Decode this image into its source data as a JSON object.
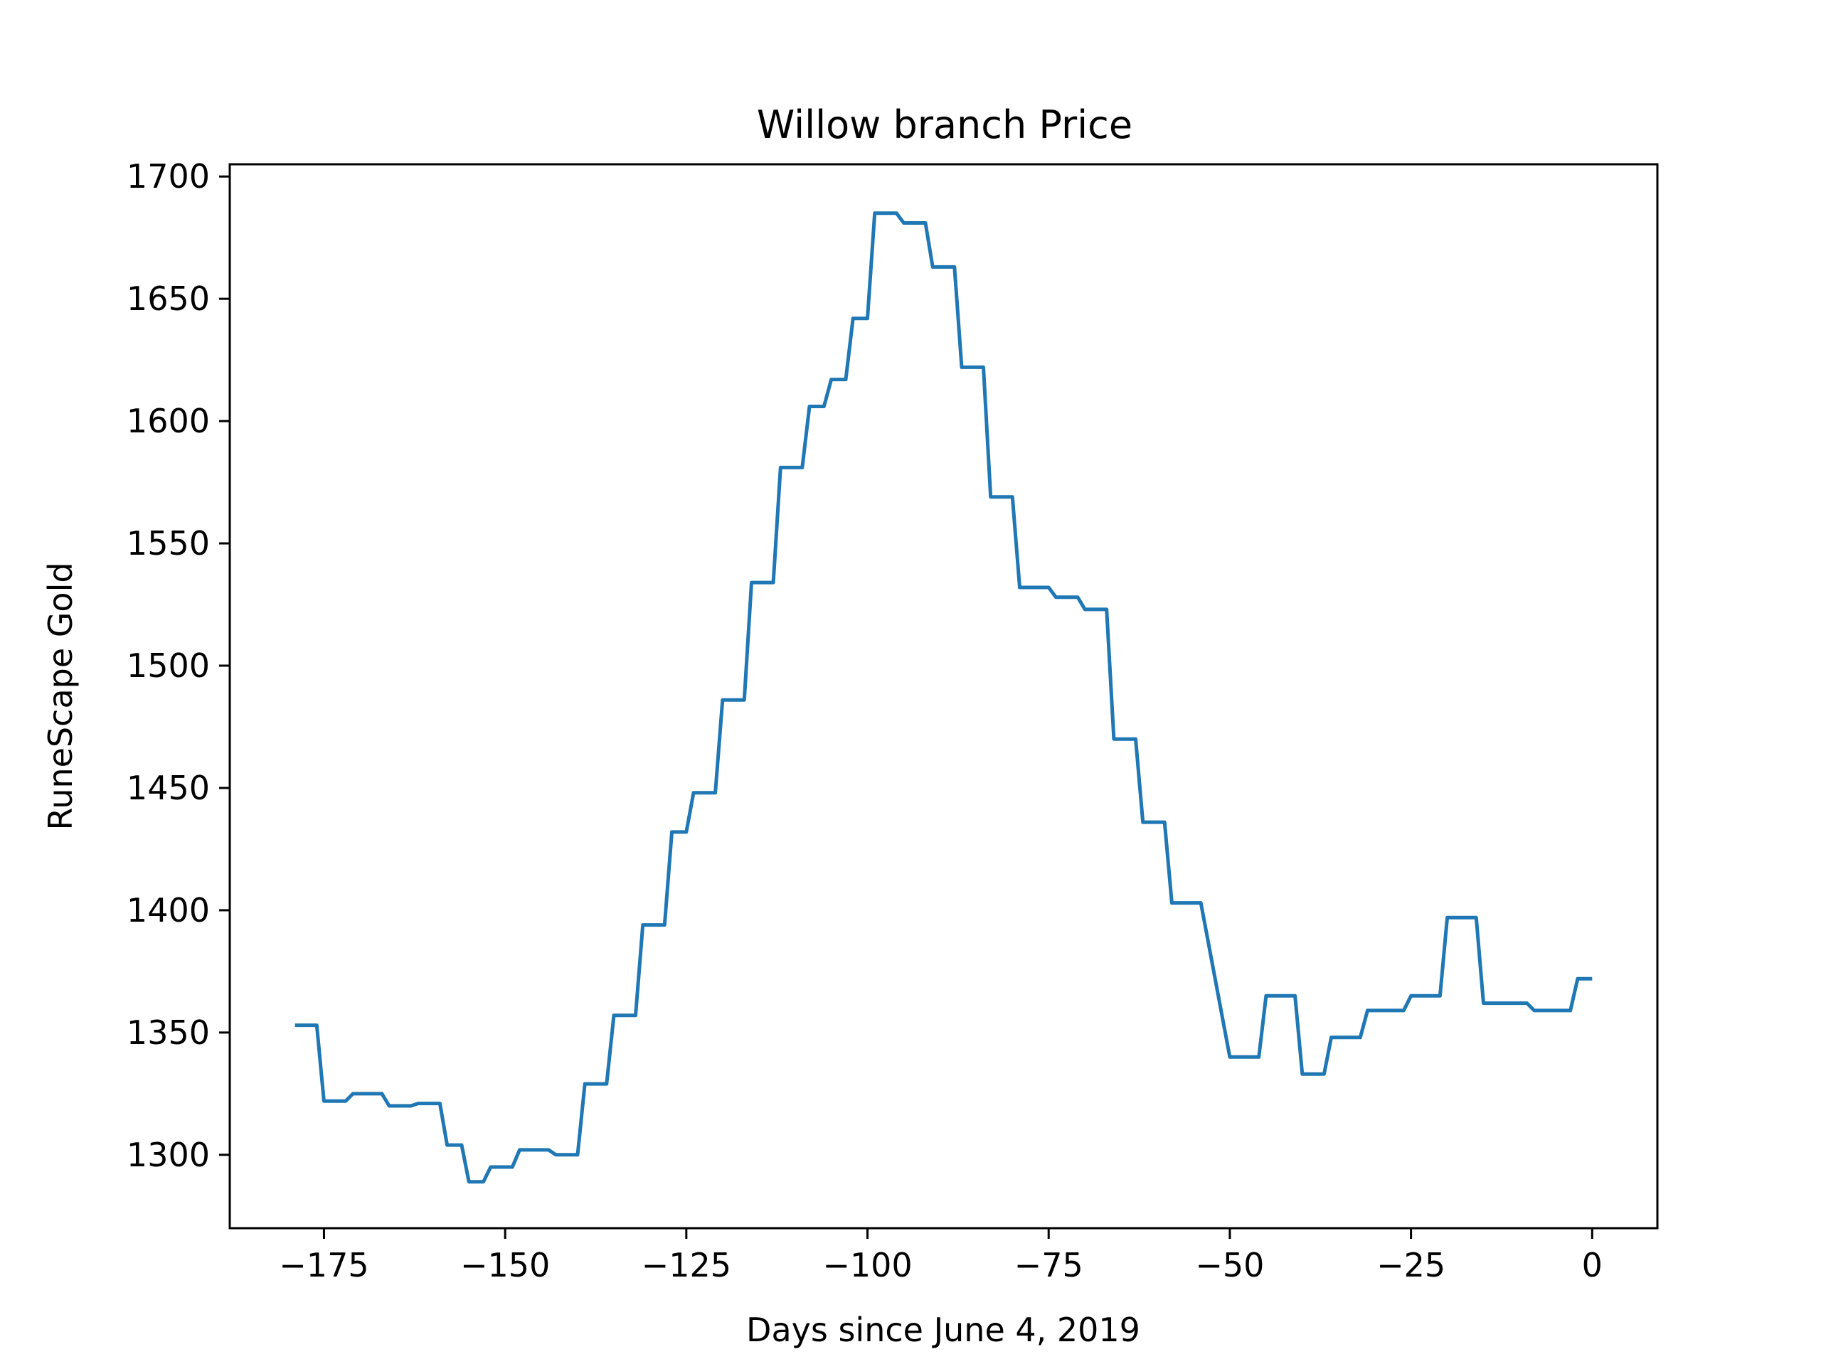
{
  "chart_data": {
    "type": "line",
    "title": "Willow branch Price",
    "xlabel": "Days since June 4, 2019",
    "ylabel": "RuneScape Gold",
    "xlim": [
      -188,
      9
    ],
    "ylim": [
      1270,
      1705
    ],
    "xticks": [
      -175,
      -150,
      -125,
      -100,
      -75,
      -50,
      -25,
      0
    ],
    "xtick_labels": [
      "−175",
      "−150",
      "−125",
      "−100",
      "−75",
      "−50",
      "−25",
      "0"
    ],
    "yticks": [
      1300,
      1350,
      1400,
      1450,
      1500,
      1550,
      1600,
      1650,
      1700
    ],
    "ytick_labels": [
      "1300",
      "1350",
      "1400",
      "1450",
      "1500",
      "1550",
      "1600",
      "1650",
      "1700"
    ],
    "grid": false,
    "series": [
      {
        "color": "#1f77b4",
        "x": [
          -179,
          -176,
          -175,
          -172,
          -171,
          -167,
          -166,
          -163,
          -162,
          -159,
          -158,
          -156,
          -155,
          -153,
          -152,
          -149,
          -148,
          -144,
          -143,
          -140,
          -139,
          -136,
          -135,
          -132,
          -131,
          -128,
          -127,
          -125,
          -124,
          -121,
          -120,
          -117,
          -116,
          -113,
          -112,
          -109,
          -108,
          -106,
          -105,
          -103,
          -102,
          -100,
          -99,
          -96,
          -95,
          -92,
          -91,
          -88,
          -87,
          -84,
          -83,
          -80,
          -79,
          -75,
          -74,
          -71,
          -70,
          -67,
          -66,
          -63,
          -62,
          -59,
          -58,
          -55,
          -54,
          -50,
          -49,
          -46,
          -45,
          -41,
          -40,
          -37,
          -36,
          -32,
          -31,
          -26,
          -25,
          -21,
          -20,
          -16,
          -15,
          -9,
          -8,
          -3,
          -2,
          0
        ],
        "y": [
          1353,
          1353,
          1322,
          1322,
          1325,
          1325,
          1320,
          1320,
          1321,
          1321,
          1304,
          1304,
          1289,
          1289,
          1295,
          1295,
          1302,
          1302,
          1300,
          1300,
          1329,
          1329,
          1357,
          1357,
          1394,
          1394,
          1432,
          1432,
          1448,
          1448,
          1486,
          1486,
          1534,
          1534,
          1581,
          1581,
          1606,
          1606,
          1617,
          1617,
          1642,
          1642,
          1685,
          1685,
          1681,
          1681,
          1663,
          1663,
          1622,
          1622,
          1569,
          1569,
          1532,
          1532,
          1528,
          1528,
          1523,
          1523,
          1470,
          1470,
          1436,
          1436,
          1403,
          1403,
          1403,
          1340,
          1340,
          1340,
          1365,
          1365,
          1333,
          1333,
          1348,
          1348,
          1359,
          1359,
          1365,
          1365,
          1397,
          1397,
          1362,
          1362,
          1359,
          1359,
          1372,
          1372
        ]
      }
    ]
  }
}
